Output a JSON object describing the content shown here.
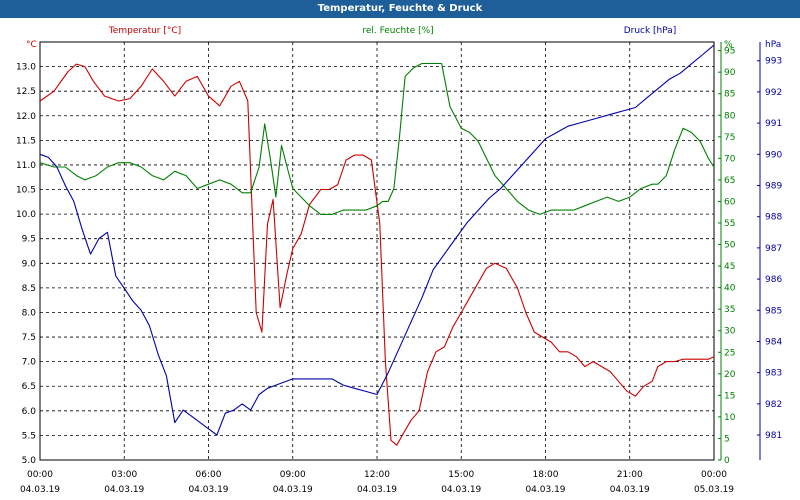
{
  "window": {
    "title": "Temperatur, Feuchte & Druck"
  },
  "chart_data": {
    "type": "line",
    "title": "Temperatur, Feuchte & Druck",
    "grid": true,
    "x_ticks": [
      {
        "time": "00:00",
        "date": "04.03.19"
      },
      {
        "time": "03:00",
        "date": "04.03.19"
      },
      {
        "time": "06:00",
        "date": "04.03.19"
      },
      {
        "time": "09:00",
        "date": "04.03.19"
      },
      {
        "time": "12:00",
        "date": "04.03.19"
      },
      {
        "time": "15:00",
        "date": "04.03.19"
      },
      {
        "time": "18:00",
        "date": "04.03.19"
      },
      {
        "time": "21:00",
        "date": "04.03.19"
      },
      {
        "time": "00:00",
        "date": "05.03.19"
      }
    ],
    "x_range_hours": [
      0,
      24
    ],
    "axes": {
      "temperature": {
        "label": "Temperatur [°C]",
        "unit": "°C",
        "color": "#cc0000",
        "side": "left",
        "range": [
          5.0,
          13.5
        ],
        "ticks": [
          "5.0",
          "5.5",
          "6.0",
          "6.5",
          "7.0",
          "7.5",
          "8.0",
          "8.5",
          "9.0",
          "9.5",
          "10.0",
          "10.5",
          "11.0",
          "11.5",
          "12.0",
          "12.5",
          "13.0"
        ]
      },
      "humidity": {
        "label": "rel. Feuchte [%]",
        "unit": "%",
        "color": "#008000",
        "side": "right",
        "range": [
          0,
          97
        ],
        "ticks": [
          "0",
          "5",
          "10",
          "15",
          "20",
          "25",
          "30",
          "35",
          "40",
          "45",
          "50",
          "55",
          "60",
          "65",
          "70",
          "75",
          "80",
          "85",
          "90",
          "95"
        ]
      },
      "pressure": {
        "label": "Druck [hPa]",
        "unit": "hPa",
        "color": "#0000aa",
        "side": "far-right",
        "range": [
          980.2,
          993.6
        ],
        "ticks": [
          "981",
          "982",
          "983",
          "984",
          "985",
          "986",
          "987",
          "988",
          "989",
          "990",
          "991",
          "992",
          "993"
        ]
      }
    },
    "series": [
      {
        "name": "Temperatur [°C]",
        "axis": "temperature",
        "color": "#cc0000",
        "x": [
          0,
          0.5,
          1.0,
          1.3,
          1.6,
          1.9,
          2.3,
          2.8,
          3.2,
          3.6,
          4.0,
          4.4,
          4.8,
          5.2,
          5.6,
          6.0,
          6.4,
          6.8,
          7.1,
          7.4,
          7.7,
          7.9,
          8.1,
          8.3,
          8.55,
          8.8,
          9.0,
          9.3,
          9.6,
          10.0,
          10.3,
          10.6,
          10.9,
          11.2,
          11.5,
          11.8,
          12.1,
          12.3,
          12.5,
          12.7,
          12.9,
          13.2,
          13.5,
          13.8,
          14.1,
          14.4,
          14.7,
          15.0,
          15.3,
          15.6,
          15.9,
          16.2,
          16.6,
          17.0,
          17.3,
          17.6,
          17.9,
          18.2,
          18.5,
          18.8,
          19.1,
          19.4,
          19.7,
          20.0,
          20.3,
          20.6,
          20.9,
          21.2,
          21.5,
          21.8,
          22.0,
          22.3,
          22.6,
          22.9,
          23.2,
          23.5,
          23.8,
          24.0
        ],
        "values": [
          12.3,
          12.5,
          12.9,
          13.05,
          13.0,
          12.7,
          12.4,
          12.3,
          12.35,
          12.6,
          12.95,
          12.7,
          12.4,
          12.7,
          12.8,
          12.4,
          12.2,
          12.6,
          12.7,
          12.3,
          8.0,
          7.6,
          9.8,
          10.3,
          8.1,
          8.8,
          9.3,
          9.6,
          10.2,
          10.5,
          10.5,
          10.6,
          11.1,
          11.2,
          11.2,
          11.1,
          9.8,
          7.0,
          5.4,
          5.3,
          5.5,
          5.8,
          6.0,
          6.8,
          7.2,
          7.3,
          7.7,
          8.0,
          8.3,
          8.6,
          8.9,
          9.0,
          8.9,
          8.5,
          8.0,
          7.6,
          7.5,
          7.4,
          7.2,
          7.2,
          7.1,
          6.9,
          7.0,
          6.9,
          6.8,
          6.6,
          6.4,
          6.3,
          6.5,
          6.6,
          6.9,
          7.0,
          7.0,
          7.05,
          7.05,
          7.05,
          7.05,
          7.1
        ]
      },
      {
        "name": "rel. Feuchte [%]",
        "axis": "humidity",
        "color": "#008000",
        "x": [
          0,
          0.5,
          0.9,
          1.3,
          1.6,
          2.0,
          2.4,
          2.8,
          3.2,
          3.6,
          4.0,
          4.4,
          4.8,
          5.2,
          5.6,
          6.0,
          6.4,
          6.8,
          7.2,
          7.5,
          7.8,
          8.0,
          8.2,
          8.4,
          8.6,
          8.8,
          9.0,
          9.3,
          9.6,
          10.0,
          10.4,
          10.8,
          11.2,
          11.6,
          12.0,
          12.2,
          12.4,
          12.6,
          12.8,
          13.0,
          13.3,
          13.6,
          14.0,
          14.3,
          14.6,
          15.0,
          15.3,
          15.6,
          15.9,
          16.2,
          16.6,
          17.0,
          17.4,
          17.8,
          18.2,
          18.6,
          19.0,
          19.4,
          19.8,
          20.2,
          20.6,
          21.0,
          21.4,
          21.8,
          22.0,
          22.3,
          22.6,
          22.9,
          23.2,
          23.5,
          23.8,
          24.0
        ],
        "values": [
          69,
          68,
          68,
          66,
          65,
          66,
          68,
          69,
          69,
          68,
          66,
          65,
          67,
          66,
          63,
          64,
          65,
          64,
          62,
          62,
          68,
          78,
          70,
          61,
          73,
          68,
          63,
          61,
          59,
          57,
          57,
          58,
          58,
          58,
          59,
          60,
          60,
          63,
          75,
          89,
          91,
          92,
          92,
          92,
          82,
          77,
          76,
          74,
          70,
          66,
          63,
          60,
          58,
          57,
          58,
          58,
          58,
          59,
          60,
          61,
          60,
          61,
          63,
          64,
          64,
          66,
          72,
          77,
          76,
          74,
          70,
          68
        ]
      },
      {
        "name": "Druck [hPa]",
        "axis": "pressure",
        "color": "#0000aa",
        "x": [
          0,
          0.3,
          0.6,
          0.9,
          1.2,
          1.5,
          1.8,
          2.1,
          2.4,
          2.7,
          3.0,
          3.3,
          3.6,
          3.9,
          4.2,
          4.5,
          4.8,
          5.1,
          5.4,
          5.7,
          6.0,
          6.3,
          6.6,
          6.9,
          7.2,
          7.5,
          7.8,
          8.1,
          8.4,
          8.7,
          9.0,
          9.3,
          9.6,
          10.0,
          10.4,
          10.8,
          11.2,
          11.6,
          12.0,
          12.4,
          12.8,
          13.2,
          13.6,
          14.0,
          14.4,
          14.8,
          15.2,
          15.6,
          16.0,
          16.4,
          16.8,
          17.2,
          17.6,
          18.0,
          18.4,
          18.8,
          19.2,
          19.6,
          20.0,
          20.4,
          20.8,
          21.2,
          21.6,
          22.0,
          22.4,
          22.8,
          23.2,
          23.6,
          24.0
        ],
        "values": [
          990.0,
          989.9,
          989.6,
          989.0,
          988.5,
          987.6,
          986.8,
          987.3,
          987.5,
          986.1,
          985.7,
          985.3,
          985.0,
          984.5,
          983.6,
          982.9,
          981.4,
          981.8,
          981.6,
          981.4,
          981.2,
          981.0,
          981.7,
          981.8,
          982.0,
          981.8,
          982.3,
          982.5,
          982.6,
          982.7,
          982.8,
          982.8,
          982.8,
          982.8,
          982.8,
          982.6,
          982.5,
          982.4,
          982.3,
          983.0,
          983.8,
          984.6,
          985.4,
          986.3,
          986.8,
          987.3,
          987.8,
          988.2,
          988.6,
          988.9,
          989.3,
          989.7,
          990.1,
          990.5,
          990.7,
          990.9,
          991.0,
          991.1,
          991.2,
          991.3,
          991.4,
          991.5,
          991.8,
          992.1,
          992.4,
          992.6,
          992.9,
          993.2,
          993.5
        ]
      }
    ]
  }
}
